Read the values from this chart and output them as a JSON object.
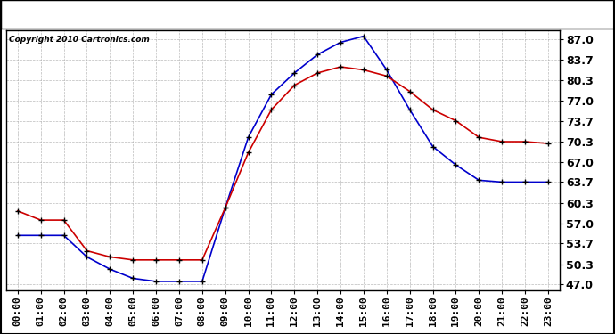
{
  "copyright": "Copyright 2010 Cartronics.com",
  "hours": [
    0,
    1,
    2,
    3,
    4,
    5,
    6,
    7,
    8,
    9,
    10,
    11,
    12,
    13,
    14,
    15,
    16,
    17,
    18,
    19,
    20,
    21,
    22,
    23
  ],
  "x_labels": [
    "00:00",
    "01:00",
    "02:00",
    "03:00",
    "04:00",
    "05:00",
    "06:00",
    "07:00",
    "08:00",
    "09:00",
    "10:00",
    "11:00",
    "12:00",
    "13:00",
    "14:00",
    "15:00",
    "16:00",
    "17:00",
    "18:00",
    "19:00",
    "20:00",
    "21:00",
    "22:00",
    "23:00"
  ],
  "temp_red": [
    59.0,
    57.5,
    57.5,
    52.5,
    51.5,
    51.0,
    51.0,
    51.0,
    51.0,
    59.5,
    68.5,
    75.5,
    79.5,
    81.5,
    82.5,
    82.0,
    81.0,
    78.5,
    75.5,
    73.7,
    71.0,
    70.3,
    70.3,
    70.0
  ],
  "thsw_blue": [
    55.0,
    55.0,
    55.0,
    51.5,
    49.5,
    48.0,
    47.5,
    47.5,
    47.5,
    59.5,
    71.0,
    78.0,
    81.5,
    84.5,
    86.5,
    87.5,
    82.0,
    75.5,
    69.5,
    66.5,
    64.0,
    63.7,
    63.7,
    63.7
  ],
  "y_ticks": [
    47.0,
    50.3,
    53.7,
    57.0,
    60.3,
    63.7,
    67.0,
    70.3,
    73.7,
    77.0,
    80.3,
    83.7,
    87.0
  ],
  "ylim": [
    46.0,
    88.5
  ],
  "red_color": "#cc0000",
  "blue_color": "#0000cc",
  "marker_color": "#000000",
  "bg_color": "#ffffff",
  "grid_color": "#aaaaaa",
  "title_fontsize": 11,
  "copyright_fontsize": 6.5,
  "tick_fontsize": 8,
  "ytick_fontsize": 9
}
